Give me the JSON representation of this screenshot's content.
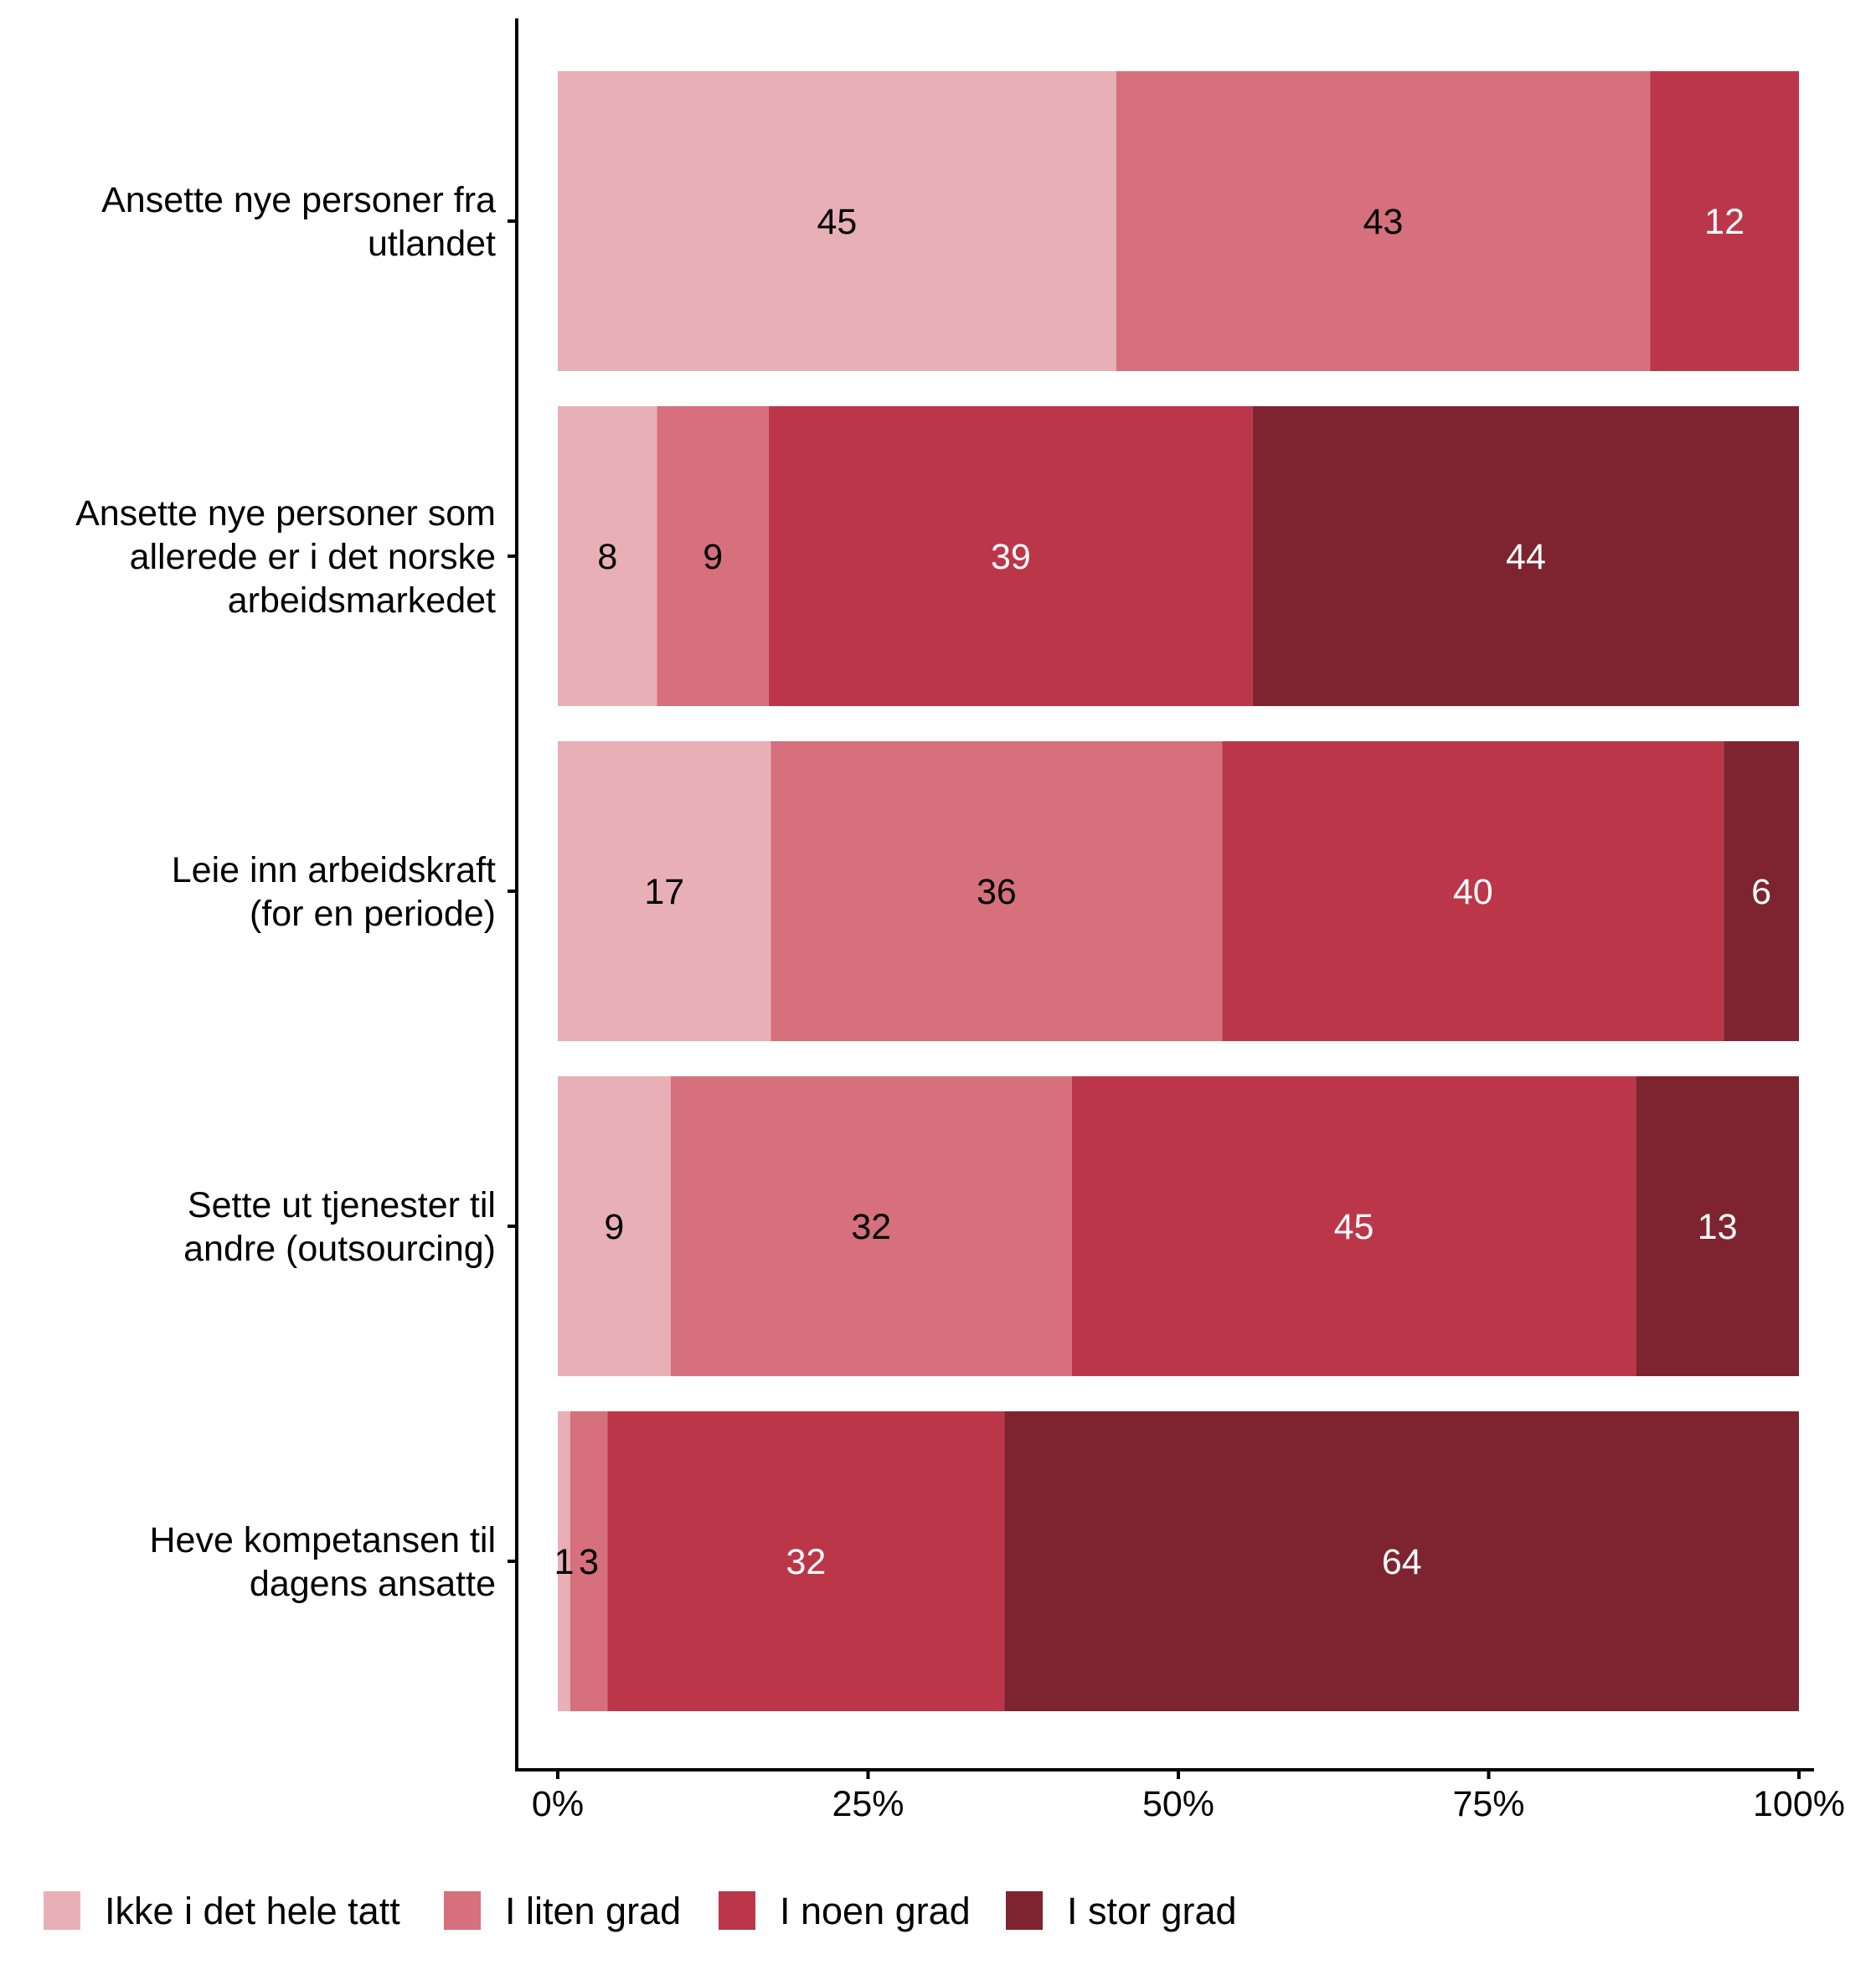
{
  "chart_data": {
    "type": "bar",
    "orientation": "horizontal",
    "stacked": true,
    "percent": true,
    "title": "",
    "xlabel": "",
    "ylabel": "",
    "xlim": [
      0,
      100
    ],
    "x_ticks": [
      "0%",
      "25%",
      "50%",
      "75%",
      "100%"
    ],
    "x_tick_values": [
      0,
      25,
      50,
      75,
      100
    ],
    "grid": false,
    "legend_position": "bottom",
    "categories": [
      [
        "Ansette nye personer fra",
        "utlandet"
      ],
      [
        "Ansette nye personer som",
        "allerede er i det norske",
        "arbeidsmarkedet"
      ],
      [
        "Leie inn arbeidskraft",
        "(for en periode)"
      ],
      [
        "Sette ut tjenester til",
        "andre (outsourcing)"
      ],
      [
        "Heve kompetansen til",
        "dagens ansatte"
      ]
    ],
    "series": [
      {
        "name": "Ikke i det hele tatt",
        "color": "#E8B0B6",
        "label_color": "#000000",
        "values": [
          45,
          8,
          17,
          9,
          1
        ]
      },
      {
        "name": "I liten grad",
        "color": "#D6707C",
        "label_color": "#000000",
        "values": [
          43,
          9,
          36,
          32,
          3
        ]
      },
      {
        "name": "I noen grad",
        "color": "#BC364A",
        "label_color": "#ffffff",
        "values": [
          12,
          39,
          40,
          45,
          32
        ]
      },
      {
        "name": "I stor grad",
        "color": "#7E2430",
        "label_color": "#ffffff",
        "values": [
          0,
          44,
          6,
          13,
          64
        ]
      }
    ]
  }
}
